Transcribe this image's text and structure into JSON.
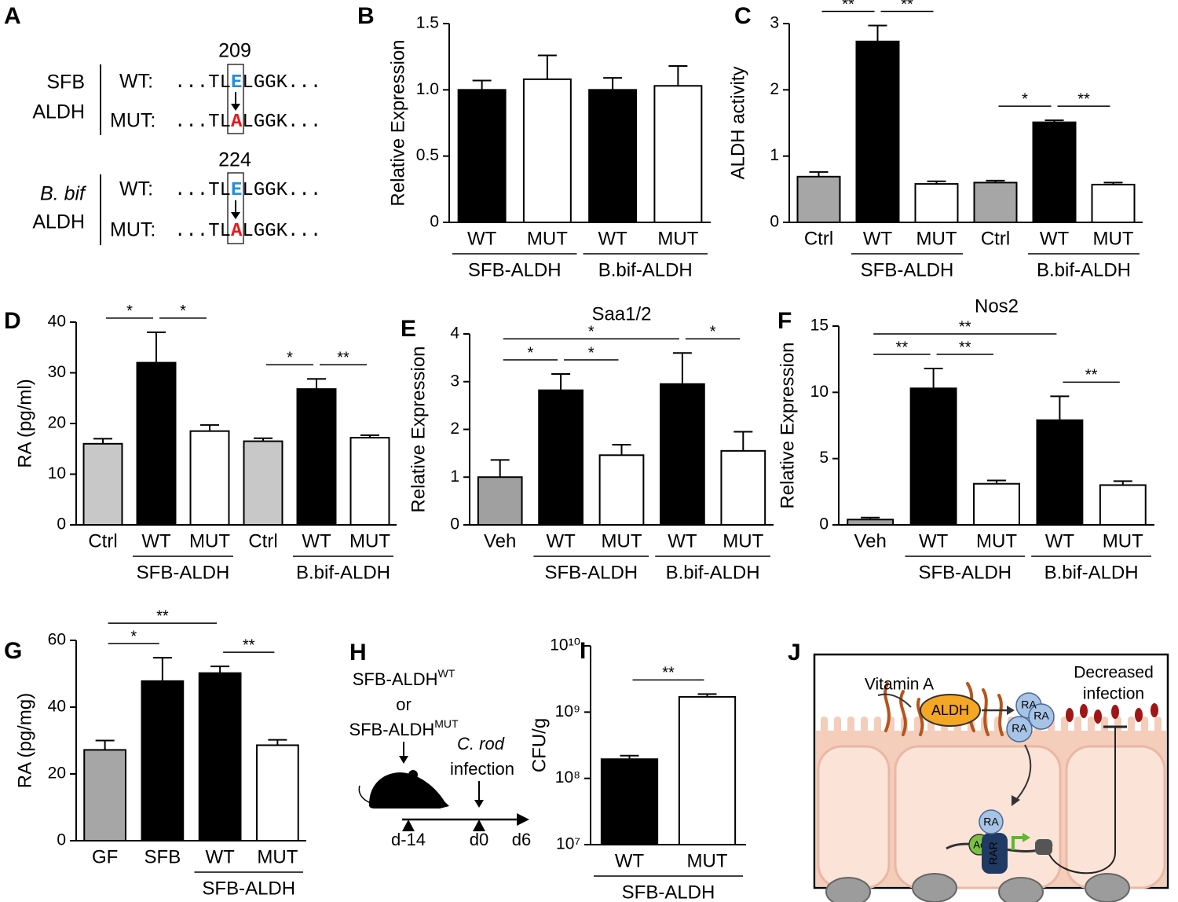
{
  "sequence_panel": {
    "label": "A",
    "groups": [
      {
        "position": 209,
        "name": [
          "SFB",
          "ALDH"
        ],
        "rows": [
          {
            "label": "WT:",
            "prefix": "...TL",
            "residue": "E",
            "suffix": "LGGK..."
          },
          {
            "label": "MUT:",
            "prefix": "...TL",
            "residue": "A",
            "suffix": "LGGK..."
          }
        ]
      },
      {
        "position": 224,
        "name": [
          "B. bif",
          "ALDH"
        ],
        "rows": [
          {
            "label": "WT:",
            "prefix": "...TL",
            "residue": "E",
            "suffix": "LGGK..."
          },
          {
            "label": "MUT:",
            "prefix": "...TL",
            "residue": "A",
            "suffix": "LGGK..."
          }
        ]
      }
    ]
  },
  "timeline_panel": {
    "label": "H",
    "treatments": [
      {
        "name": "SFB-ALDH",
        "superscript": "WT"
      },
      {
        "name": "SFB-ALDH",
        "superscript": "MUT"
      }
    ],
    "or": "or",
    "infection": [
      "C. rod",
      "infection"
    ],
    "days": [
      "d-14",
      "d0",
      "d6"
    ]
  },
  "diagram_panel": {
    "label": "J",
    "vitamin": "Vitamin A",
    "enzyme": "ALDH",
    "product": "RA",
    "outcome": [
      "Decreased",
      "infection"
    ],
    "acetyl": "Ac",
    "receptor": "RAR"
  },
  "chart_data": [
    {
      "type": "bar",
      "label": "B",
      "ylabel": "Relative Expression",
      "categories": [
        "WT",
        "MUT",
        "WT",
        "MUT"
      ],
      "values": [
        1.0,
        1.08,
        1.0,
        1.03
      ],
      "errors": [
        0.07,
        0.18,
        0.09,
        0.15
      ],
      "colors": [
        "#000000",
        "#ffffff",
        "#000000",
        "#ffffff"
      ],
      "groups": [
        {
          "label": "SFB-ALDH",
          "from": 0,
          "to": 1
        },
        {
          "label": "B.bif-ALDH",
          "from": 2,
          "to": 3
        }
      ],
      "brackets": [],
      "ylim": [
        0,
        1.5
      ],
      "yticks": [
        0,
        0.5,
        {
          "value": 1,
          "label": "1.0"
        },
        1.5
      ]
    },
    {
      "type": "bar",
      "label": "C",
      "ylabel": "ALDH activity",
      "categories": [
        "Ctrl",
        "WT",
        "MUT",
        "Ctrl",
        "WT",
        "MUT"
      ],
      "values": [
        0.69,
        2.73,
        0.58,
        0.6,
        1.51,
        0.57
      ],
      "errors": [
        0.07,
        0.24,
        0.04,
        0.03,
        0.03,
        0.03
      ],
      "colors": [
        "#a6a6a6",
        "#000000",
        "#ffffff",
        "#a6a6a6",
        "#000000",
        "#ffffff"
      ],
      "groups": [
        {
          "label": "SFB-ALDH",
          "from": 1,
          "to": 2
        },
        {
          "label": "B.bif-ALDH",
          "from": 4,
          "to": 5
        }
      ],
      "brackets": [
        {
          "from": 0,
          "to": 1,
          "label": "**"
        },
        {
          "from": 1,
          "to": 2,
          "label": "**"
        },
        {
          "from": 3,
          "to": 4,
          "label": "*"
        },
        {
          "from": 4,
          "to": 5,
          "label": "**"
        }
      ],
      "ylim": [
        0,
        3
      ],
      "yticks": [
        0,
        1,
        2,
        3
      ]
    },
    {
      "type": "bar",
      "label": "D",
      "ylabel": "RA (pg/ml)",
      "categories": [
        "Ctrl",
        "WT",
        "MUT",
        "Ctrl",
        "WT",
        "MUT"
      ],
      "values": [
        16,
        32,
        18.5,
        16.5,
        26.8,
        17.2
      ],
      "errors": [
        1,
        6,
        1.2,
        0.6,
        2,
        0.5
      ],
      "colors": [
        "#c8c8c8",
        "#000000",
        "#ffffff",
        "#c8c8c8",
        "#000000",
        "#ffffff"
      ],
      "groups": [
        {
          "label": "SFB-ALDH",
          "from": 1,
          "to": 2
        },
        {
          "label": "B.bif-ALDH",
          "from": 4,
          "to": 5
        }
      ],
      "brackets": [
        {
          "from": 0,
          "to": 1,
          "label": "*"
        },
        {
          "from": 1,
          "to": 2,
          "label": "*"
        },
        {
          "from": 3,
          "to": 4,
          "label": "*"
        },
        {
          "from": 4,
          "to": 5,
          "label": "**"
        }
      ],
      "ylim": [
        0,
        40
      ],
      "yticks": [
        0,
        10,
        20,
        30,
        40
      ]
    },
    {
      "type": "bar",
      "label": "E",
      "title": "Saa1/2",
      "ylabel": "Relative Expression",
      "categories": [
        "Veh",
        "WT",
        "MUT",
        "WT",
        "MUT"
      ],
      "values": [
        1.0,
        2.82,
        1.46,
        2.95,
        1.55
      ],
      "errors": [
        0.36,
        0.34,
        0.22,
        0.65,
        0.4
      ],
      "colors": [
        "#a0a0a0",
        "#000000",
        "#ffffff",
        "#000000",
        "#ffffff"
      ],
      "groups": [
        {
          "label": "SFB-ALDH",
          "from": 1,
          "to": 2
        },
        {
          "label": "B.bif-ALDH",
          "from": 3,
          "to": 4
        }
      ],
      "brackets": [
        {
          "from": 0,
          "to": 1,
          "label": "*"
        },
        {
          "from": 1,
          "to": 2,
          "label": "*"
        },
        {
          "from": 0,
          "to": 3,
          "label": "*"
        },
        {
          "from": 3,
          "to": 4,
          "label": "*"
        }
      ],
      "ylim": [
        0,
        4
      ],
      "yticks": [
        0,
        1,
        2,
        3,
        4
      ]
    },
    {
      "type": "bar",
      "label": "F",
      "title": "Nos2",
      "ylabel": "Relative Expression",
      "categories": [
        "Veh",
        "WT",
        "MUT",
        "WT",
        "MUT"
      ],
      "values": [
        0.4,
        10.3,
        3.1,
        7.9,
        3.0
      ],
      "errors": [
        0.15,
        1.5,
        0.25,
        1.8,
        0.3
      ],
      "colors": [
        "#a0a0a0",
        "#000000",
        "#ffffff",
        "#000000",
        "#ffffff"
      ],
      "groups": [
        {
          "label": "SFB-ALDH",
          "from": 1,
          "to": 2
        },
        {
          "label": "B.bif-ALDH",
          "from": 3,
          "to": 4
        }
      ],
      "brackets": [
        {
          "from": 0,
          "to": 1,
          "label": "**"
        },
        {
          "from": 1,
          "to": 2,
          "label": "**"
        },
        {
          "from": 0,
          "to": 3,
          "label": "**"
        },
        {
          "from": 3,
          "to": 4,
          "label": "**"
        }
      ],
      "ylim": [
        0,
        15
      ],
      "yticks": [
        0,
        5,
        10,
        15
      ]
    },
    {
      "type": "bar",
      "label": "G",
      "ylabel": "RA (pg/mg)",
      "categories": [
        "GF",
        "SFB",
        "WT",
        "MUT"
      ],
      "values": [
        27.2,
        47.8,
        50.2,
        28.6
      ],
      "errors": [
        2.8,
        7,
        2,
        1.6
      ],
      "colors": [
        "#a6a6a6",
        "#000000",
        "#000000",
        "#ffffff"
      ],
      "groups": [
        {
          "label": "SFB-ALDH",
          "from": 2,
          "to": 3
        }
      ],
      "brackets": [
        {
          "from": 0,
          "to": 1,
          "label": "*"
        },
        {
          "from": 0,
          "to": 2,
          "label": "**"
        },
        {
          "from": 2,
          "to": 3,
          "label": "**"
        }
      ],
      "ylim": [
        0,
        60
      ],
      "yticks": [
        0,
        20,
        40,
        60
      ]
    },
    {
      "type": "bar",
      "label": "I",
      "ylabel": "CFU/g",
      "log_scale": true,
      "categories": [
        "WT",
        "MUT"
      ],
      "values": [
        195000000,
        1700000000
      ],
      "errors": [
        25000000,
        170000000
      ],
      "colors": [
        "#000000",
        "#ffffff"
      ],
      "groups": [
        {
          "label": "SFB-ALDH",
          "from": 0,
          "to": 1
        }
      ],
      "brackets": [
        {
          "from": 0,
          "to": 1,
          "label": "**"
        }
      ],
      "ylim": [
        10000000,
        10000000000
      ],
      "yticks": [
        {
          "value": 10000000,
          "label": "10⁷"
        },
        {
          "value": 100000000,
          "label": "10⁸"
        },
        {
          "value": 1000000000,
          "label": "10⁹"
        },
        {
          "value": 10000000000,
          "label": "10¹⁰"
        }
      ]
    }
  ]
}
